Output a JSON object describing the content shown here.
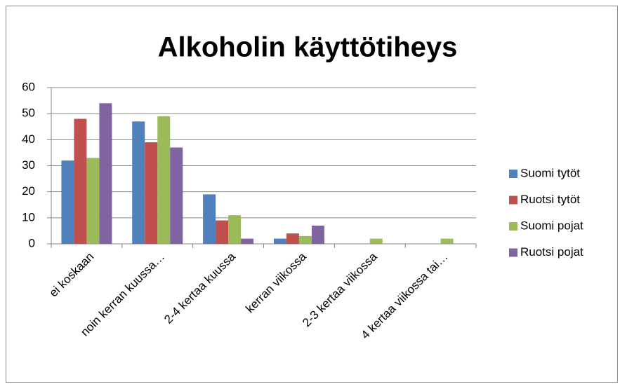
{
  "chart_data": {
    "type": "bar",
    "title": "Alkoholin käyttötiheys",
    "categories": [
      "ei koskaan",
      "noin kerran kuussa…",
      "2-4 kertaa kuussa",
      "kerran viikossa",
      "2-3 kertaa viikossa",
      "4 kertaa viikossa tai…"
    ],
    "series": [
      {
        "name": "Suomi tytöt",
        "color": "#4f81bd",
        "values": [
          32,
          47,
          19,
          2,
          0,
          0
        ]
      },
      {
        "name": "Ruotsi tytöt",
        "color": "#c0504d",
        "values": [
          48,
          39,
          9,
          4,
          0,
          0
        ]
      },
      {
        "name": "Suomi pojat",
        "color": "#9bbb59",
        "values": [
          33,
          49,
          11,
          3,
          2,
          2
        ]
      },
      {
        "name": "Ruotsi pojat",
        "color": "#8064a2",
        "values": [
          54,
          37,
          2,
          7,
          0,
          0
        ]
      }
    ],
    "ylim": [
      0,
      60
    ],
    "yticks": [
      0,
      10,
      20,
      30,
      40,
      50,
      60
    ],
    "grid": true,
    "legend": "right"
  }
}
